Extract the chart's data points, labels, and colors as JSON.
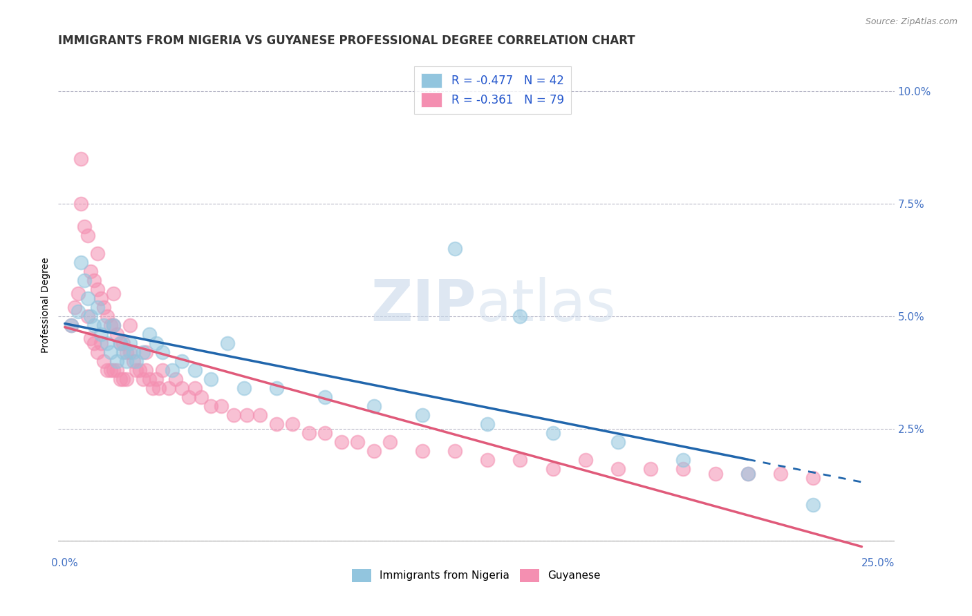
{
  "title": "IMMIGRANTS FROM NIGERIA VS GUYANESE PROFESSIONAL DEGREE CORRELATION CHART",
  "source": "Source: ZipAtlas.com",
  "ylabel": "Professional Degree",
  "xlim": [
    -0.002,
    0.255
  ],
  "ylim": [
    -0.003,
    0.108
  ],
  "xticks": [
    0.0,
    0.05,
    0.1,
    0.15,
    0.2,
    0.25
  ],
  "xtick_labels": [
    "0.0%",
    "",
    "",
    "",
    "",
    "25.0%"
  ],
  "ytick_labels": [
    "",
    "2.5%",
    "5.0%",
    "7.5%",
    "10.0%"
  ],
  "yticks": [
    0.0,
    0.025,
    0.05,
    0.075,
    0.1
  ],
  "legend_label1": "R = -0.477   N = 42",
  "legend_label2": "R = -0.361   N = 79",
  "bottom_label1": "Immigrants from Nigeria",
  "bottom_label2": "Guyanese",
  "nigeria_color": "#92c5de",
  "guyanese_color": "#f4a582",
  "nigeria_dot_color": "#92c5de",
  "guyanese_dot_color": "#f48fb1",
  "nigeria_line_color": "#2166ac",
  "guyanese_line_color": "#e05a7a",
  "watermark_color": "#c8d8ea",
  "title_fontsize": 12,
  "axis_label_fontsize": 10,
  "tick_fontsize": 11,
  "nigeria_x": [
    0.002,
    0.004,
    0.005,
    0.006,
    0.007,
    0.008,
    0.009,
    0.01,
    0.011,
    0.012,
    0.013,
    0.014,
    0.015,
    0.016,
    0.017,
    0.018,
    0.019,
    0.02,
    0.021,
    0.022,
    0.024,
    0.026,
    0.028,
    0.03,
    0.033,
    0.036,
    0.04,
    0.045,
    0.05,
    0.055,
    0.065,
    0.08,
    0.095,
    0.11,
    0.13,
    0.15,
    0.17,
    0.19,
    0.21,
    0.23,
    0.12,
    0.14
  ],
  "nigeria_y": [
    0.048,
    0.051,
    0.062,
    0.058,
    0.054,
    0.05,
    0.048,
    0.052,
    0.046,
    0.048,
    0.044,
    0.042,
    0.048,
    0.04,
    0.044,
    0.042,
    0.04,
    0.044,
    0.042,
    0.04,
    0.042,
    0.046,
    0.044,
    0.042,
    0.038,
    0.04,
    0.038,
    0.036,
    0.044,
    0.034,
    0.034,
    0.032,
    0.03,
    0.028,
    0.026,
    0.024,
    0.022,
    0.018,
    0.015,
    0.008,
    0.065,
    0.05
  ],
  "guyanese_x": [
    0.002,
    0.003,
    0.004,
    0.005,
    0.006,
    0.007,
    0.007,
    0.008,
    0.008,
    0.009,
    0.009,
    0.01,
    0.01,
    0.011,
    0.011,
    0.012,
    0.012,
    0.013,
    0.013,
    0.014,
    0.014,
    0.015,
    0.015,
    0.016,
    0.016,
    0.017,
    0.017,
    0.018,
    0.018,
    0.019,
    0.019,
    0.02,
    0.021,
    0.022,
    0.023,
    0.024,
    0.025,
    0.026,
    0.027,
    0.028,
    0.029,
    0.03,
    0.032,
    0.034,
    0.036,
    0.038,
    0.04,
    0.042,
    0.045,
    0.048,
    0.052,
    0.056,
    0.06,
    0.065,
    0.07,
    0.075,
    0.08,
    0.085,
    0.09,
    0.095,
    0.1,
    0.11,
    0.12,
    0.13,
    0.14,
    0.15,
    0.16,
    0.17,
    0.18,
    0.19,
    0.2,
    0.21,
    0.22,
    0.23,
    0.005,
    0.01,
    0.015,
    0.02,
    0.025
  ],
  "guyanese_y": [
    0.048,
    0.052,
    0.055,
    0.085,
    0.07,
    0.068,
    0.05,
    0.06,
    0.045,
    0.058,
    0.044,
    0.056,
    0.042,
    0.054,
    0.044,
    0.052,
    0.04,
    0.05,
    0.038,
    0.048,
    0.038,
    0.048,
    0.038,
    0.046,
    0.038,
    0.044,
    0.036,
    0.044,
    0.036,
    0.042,
    0.036,
    0.042,
    0.04,
    0.038,
    0.038,
    0.036,
    0.038,
    0.036,
    0.034,
    0.036,
    0.034,
    0.038,
    0.034,
    0.036,
    0.034,
    0.032,
    0.034,
    0.032,
    0.03,
    0.03,
    0.028,
    0.028,
    0.028,
    0.026,
    0.026,
    0.024,
    0.024,
    0.022,
    0.022,
    0.02,
    0.022,
    0.02,
    0.02,
    0.018,
    0.018,
    0.016,
    0.018,
    0.016,
    0.016,
    0.016,
    0.015,
    0.015,
    0.015,
    0.014,
    0.075,
    0.064,
    0.055,
    0.048,
    0.042
  ]
}
